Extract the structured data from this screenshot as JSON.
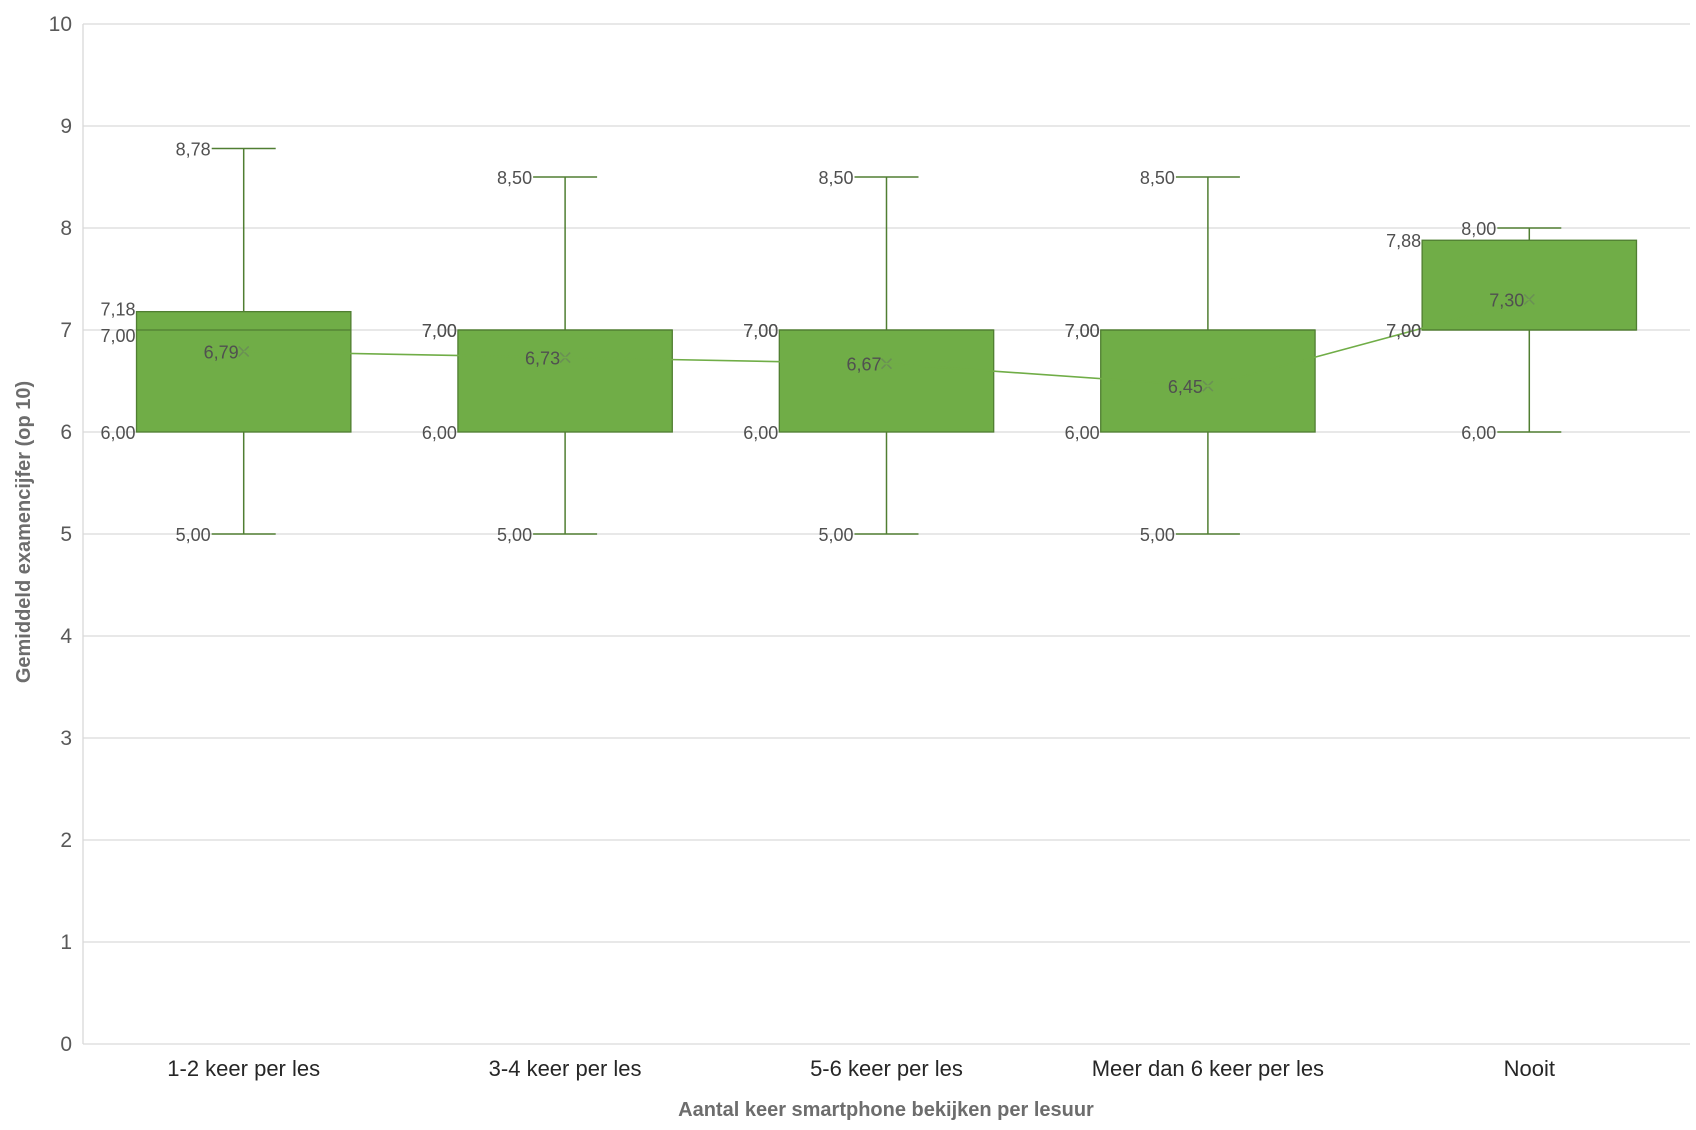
{
  "chart_data": {
    "type": "boxplot",
    "xlabel": "Aantal keer smartphone bekijken per lesuur",
    "ylabel": "Gemiddeld examencijfer (op 10)",
    "ylim": [
      0,
      10
    ],
    "yticks": [
      "0",
      "1",
      "2",
      "3",
      "4",
      "5",
      "6",
      "7",
      "8",
      "9",
      "10"
    ],
    "grid": true,
    "colors": {
      "box_fill": "#70ad47",
      "box_stroke": "#507e32",
      "whisker": "#507e32",
      "mean_line": "#70ad47",
      "grid": "#d9d9d9"
    },
    "categories": [
      "1-2 keer per les",
      "3-4 keer per les",
      "5-6 keer per les",
      "Meer dan 6 keer per les",
      "Nooit"
    ],
    "boxes": [
      {
        "min": 5.0,
        "q1": 6.0,
        "median": 7.0,
        "q3": 7.18,
        "max": 8.78,
        "mean": 6.79,
        "labels": {
          "min": "5,00",
          "q1": "6,00",
          "median": "7,00",
          "q3": "7,18",
          "max": "8,78",
          "mean": "6,79"
        }
      },
      {
        "min": 5.0,
        "q1": 6.0,
        "median": 7.0,
        "q3": 7.0,
        "max": 8.5,
        "mean": 6.73,
        "labels": {
          "min": "5,00",
          "q1": "6,00",
          "median": "7,00",
          "q3": "7,00",
          "max": "8,50",
          "mean": "6,73"
        }
      },
      {
        "min": 5.0,
        "q1": 6.0,
        "median": 7.0,
        "q3": 7.0,
        "max": 8.5,
        "mean": 6.67,
        "labels": {
          "min": "5,00",
          "q1": "6,00",
          "median": "7,00",
          "q3": "7,00",
          "max": "8,50",
          "mean": "6,67"
        }
      },
      {
        "min": 5.0,
        "q1": 6.0,
        "median": 7.0,
        "q3": 7.0,
        "max": 8.5,
        "mean": 6.45,
        "labels": {
          "min": "5,00",
          "q1": "6,00",
          "median": "7,00",
          "q3": "7,00",
          "max": "8,50",
          "mean": "6,45"
        }
      },
      {
        "min": 6.0,
        "q1": 7.0,
        "median": 7.0,
        "q3": 7.88,
        "max": 8.0,
        "mean": 7.3,
        "labels": {
          "min": "6,00",
          "q1": "7,00",
          "median": "7,00",
          "q3": "7,88",
          "max": "8,00",
          "mean": "7,30"
        }
      }
    ]
  }
}
